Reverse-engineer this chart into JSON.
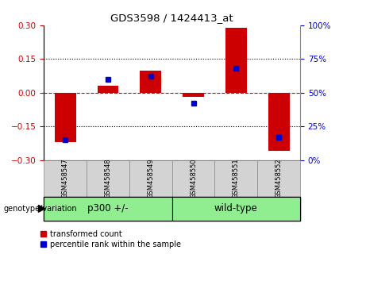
{
  "title": "GDS3598 / 1424413_at",
  "samples": [
    "GSM458547",
    "GSM458548",
    "GSM458549",
    "GSM458550",
    "GSM458551",
    "GSM458552"
  ],
  "red_values": [
    -0.22,
    0.03,
    0.1,
    -0.02,
    0.29,
    -0.26
  ],
  "blue_values": [
    15,
    60,
    62,
    42,
    68,
    17
  ],
  "ylim_left": [
    -0.3,
    0.3
  ],
  "ylim_right": [
    0,
    100
  ],
  "yticks_left": [
    -0.3,
    -0.15,
    0,
    0.15,
    0.3
  ],
  "yticks_right": [
    0,
    25,
    50,
    75,
    100
  ],
  "dotted_lines": [
    -0.15,
    0.15
  ],
  "red_color": "#CC0000",
  "blue_color": "#0000CC",
  "bar_width": 0.5,
  "marker_size": 5,
  "legend_labels": [
    "transformed count",
    "percentile rank within the sample"
  ],
  "genotype_label": "genotype/variation",
  "group_labels": [
    "p300 +/-",
    "wild-type"
  ],
  "group_colors": [
    "#90EE90",
    "#90EE90"
  ],
  "sample_bg_color": "#d3d3d3",
  "sample_border_color": "#888888"
}
